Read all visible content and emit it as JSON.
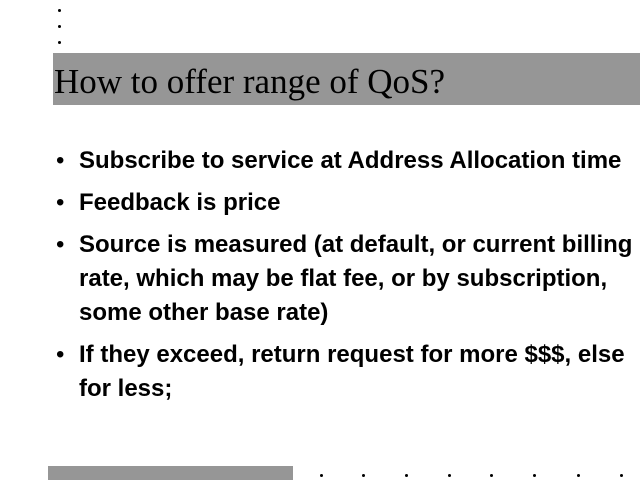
{
  "slide": {
    "title": "How to offer range of QoS?",
    "bullets": [
      {
        "text": "Subscribe to service at Address Allocation time"
      },
      {
        "text": "Feedback is price"
      },
      {
        "text": "Source is measured (at default, or current billing rate, which may be flat fee, or by subscription, some other base rate)"
      },
      {
        "text": "If they exceed, return request for more $$$, else for less;"
      }
    ],
    "bullet_glyph": "•",
    "colors": {
      "bar": "#969696",
      "text": "#000000",
      "background": "#ffffff"
    }
  }
}
